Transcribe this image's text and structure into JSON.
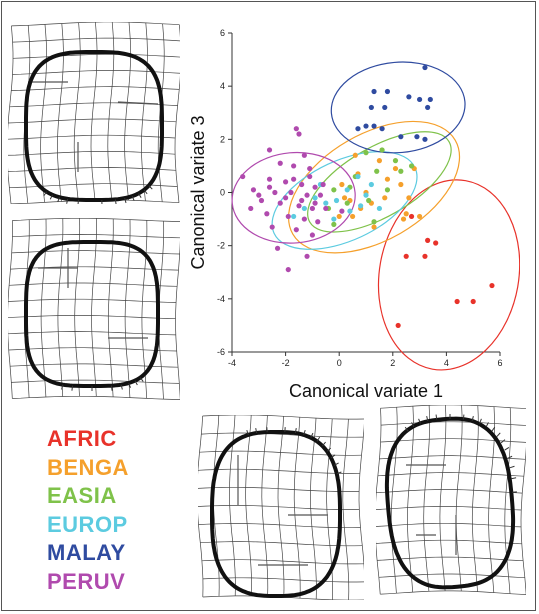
{
  "legend": [
    {
      "label": "AFRIC",
      "color": "#e8322a"
    },
    {
      "label": "BENGA",
      "color": "#f5a02c"
    },
    {
      "label": "EASIA",
      "color": "#7fc24a"
    },
    {
      "label": "EUROP",
      "color": "#5ccbe0"
    },
    {
      "label": "MALAY",
      "color": "#2f4ba0"
    },
    {
      "label": "PERUV",
      "color": "#b04aae"
    }
  ],
  "deformation_grids": [
    {
      "position": "top-left",
      "outline_shape": "rounded square, slightly narrower at bottom"
    },
    {
      "position": "middle-left",
      "outline_shape": "rounded square"
    },
    {
      "position": "bottom-center",
      "outline_shape": "rounded oval, tall"
    },
    {
      "position": "bottom-right",
      "outline_shape": "rounded oval, tall, tilted"
    }
  ],
  "chart_data": {
    "type": "scatter",
    "xlabel": "Canonical variate 1",
    "ylabel": "Canonical variate 3",
    "xlim": [
      -4,
      6
    ],
    "ylim": [
      -6,
      6
    ],
    "xticks": [
      "-4",
      "-2",
      "0",
      "2",
      "4",
      "6"
    ],
    "yticks": [
      "6",
      "4",
      "2",
      "0",
      "-2",
      "-4",
      "-6"
    ],
    "grid": false,
    "series": [
      {
        "name": "AFRIC",
        "color": "#e8322a",
        "ellipse": {
          "cx": 4.1,
          "cy": -3.1,
          "rx": 2.6,
          "ry": 3.6,
          "angle": -10
        },
        "points": [
          [
            2.7,
            -0.9
          ],
          [
            3.3,
            -1.8
          ],
          [
            3.6,
            -1.9
          ],
          [
            2.5,
            -2.4
          ],
          [
            3.2,
            -2.4
          ],
          [
            4.4,
            -4.1
          ],
          [
            5.0,
            -4.1
          ],
          [
            5.7,
            -3.5
          ],
          [
            2.2,
            -5.0
          ]
        ]
      },
      {
        "name": "BENGA",
        "color": "#f5a02c",
        "ellipse": {
          "cx": 1.3,
          "cy": 0.2,
          "rx": 3.5,
          "ry": 2.0,
          "angle": 30
        },
        "points": [
          [
            0.1,
            0.3
          ],
          [
            0.4,
            -0.3
          ],
          [
            0.7,
            0.7
          ],
          [
            1.0,
            0.0
          ],
          [
            1.2,
            -0.4
          ],
          [
            0.5,
            -0.9
          ],
          [
            1.5,
            1.2
          ],
          [
            1.8,
            0.5
          ],
          [
            2.3,
            0.3
          ],
          [
            2.6,
            -0.2
          ],
          [
            1.3,
            -1.3
          ],
          [
            2.5,
            -0.8
          ],
          [
            0.0,
            -0.9
          ],
          [
            1.7,
            -0.2
          ],
          [
            2.8,
            0.9
          ],
          [
            0.6,
            1.4
          ],
          [
            0.2,
            -0.2
          ],
          [
            0.8,
            -0.6
          ],
          [
            2.1,
            0.9
          ],
          [
            3.0,
            -0.9
          ],
          [
            2.4,
            -1.0
          ]
        ]
      },
      {
        "name": "EASIA",
        "color": "#7fc24a",
        "ellipse": {
          "cx": 1.5,
          "cy": 0.4,
          "rx": 3.0,
          "ry": 1.3,
          "angle": 30
        },
        "points": [
          [
            0.6,
            0.6
          ],
          [
            1.0,
            1.5
          ],
          [
            1.4,
            0.8
          ],
          [
            1.8,
            0.1
          ],
          [
            2.3,
            0.8
          ],
          [
            2.7,
            1.0
          ],
          [
            -0.2,
            0.1
          ],
          [
            0.3,
            -0.4
          ],
          [
            -0.4,
            -0.6
          ],
          [
            -0.2,
            -1.2
          ],
          [
            1.3,
            -1.1
          ],
          [
            0.4,
            0.2
          ],
          [
            1.1,
            -0.3
          ],
          [
            1.6,
            1.6
          ],
          [
            2.1,
            1.2
          ]
        ]
      },
      {
        "name": "EUROP",
        "color": "#5ccbe0",
        "ellipse": {
          "cx": 0.2,
          "cy": -0.3,
          "rx": 2.9,
          "ry": 1.5,
          "angle": 25
        },
        "points": [
          [
            -1.3,
            -0.6
          ],
          [
            -0.9,
            -0.2
          ],
          [
            -0.5,
            -0.4
          ],
          [
            -0.1,
            -0.3
          ],
          [
            0.3,
            0.1
          ],
          [
            0.7,
            0.6
          ],
          [
            1.0,
            -0.1
          ],
          [
            1.5,
            -0.6
          ],
          [
            -1.7,
            -0.9
          ],
          [
            -0.7,
            0.3
          ],
          [
            -0.2,
            -1.0
          ],
          [
            0.4,
            -0.7
          ],
          [
            1.2,
            0.3
          ],
          [
            0.8,
            -0.5
          ]
        ]
      },
      {
        "name": "MALAY",
        "color": "#2f4ba0",
        "ellipse": {
          "cx": 2.2,
          "cy": 3.2,
          "rx": 2.5,
          "ry": 1.7,
          "angle": 5
        },
        "points": [
          [
            3.2,
            4.7
          ],
          [
            1.3,
            3.8
          ],
          [
            1.8,
            3.8
          ],
          [
            2.6,
            3.6
          ],
          [
            3.0,
            3.5
          ],
          [
            3.4,
            3.5
          ],
          [
            1.2,
            3.2
          ],
          [
            1.7,
            3.2
          ],
          [
            3.3,
            3.2
          ],
          [
            1.0,
            2.5
          ],
          [
            1.3,
            2.5
          ],
          [
            0.7,
            2.4
          ],
          [
            1.6,
            2.4
          ],
          [
            2.3,
            2.1
          ],
          [
            2.9,
            2.1
          ],
          [
            3.2,
            2.0
          ]
        ]
      },
      {
        "name": "PERUV",
        "color": "#b04aae",
        "ellipse": {
          "cx": -1.7,
          "cy": -0.2,
          "rx": 2.3,
          "ry": 1.7,
          "angle": 5
        },
        "points": [
          [
            -1.6,
            2.4
          ],
          [
            -1.5,
            2.2
          ],
          [
            -2.6,
            1.6
          ],
          [
            -1.3,
            1.4
          ],
          [
            -2.2,
            1.1
          ],
          [
            -1.7,
            1.0
          ],
          [
            -1.1,
            0.9
          ],
          [
            -3.6,
            0.6
          ],
          [
            -2.6,
            0.5
          ],
          [
            -2.0,
            0.4
          ],
          [
            -1.4,
            0.3
          ],
          [
            -0.9,
            0.2
          ],
          [
            -3.2,
            0.1
          ],
          [
            -2.4,
            0.0
          ],
          [
            -1.8,
            0.0
          ],
          [
            -1.2,
            -0.1
          ],
          [
            -0.7,
            -0.1
          ],
          [
            -2.9,
            -0.3
          ],
          [
            -2.2,
            -0.4
          ],
          [
            -1.5,
            -0.5
          ],
          [
            -1.0,
            -0.6
          ],
          [
            -0.5,
            -0.6
          ],
          [
            -3.3,
            -0.6
          ],
          [
            -2.7,
            -0.8
          ],
          [
            -1.9,
            -0.9
          ],
          [
            -1.3,
            -1.0
          ],
          [
            -0.8,
            -1.1
          ],
          [
            -2.5,
            -1.3
          ],
          [
            -1.6,
            -1.4
          ],
          [
            -1.0,
            -1.6
          ],
          [
            -2.3,
            -2.1
          ],
          [
            -1.2,
            -2.4
          ],
          [
            -1.9,
            -2.9
          ],
          [
            -3.0,
            -0.1
          ],
          [
            -2.0,
            -0.2
          ],
          [
            -1.4,
            -0.3
          ],
          [
            -0.9,
            -0.4
          ],
          [
            -2.6,
            0.2
          ],
          [
            -1.7,
            0.5
          ],
          [
            -1.1,
            0.6
          ],
          [
            0.1,
            -0.7
          ],
          [
            -0.6,
            0.3
          ]
        ]
      }
    ]
  }
}
